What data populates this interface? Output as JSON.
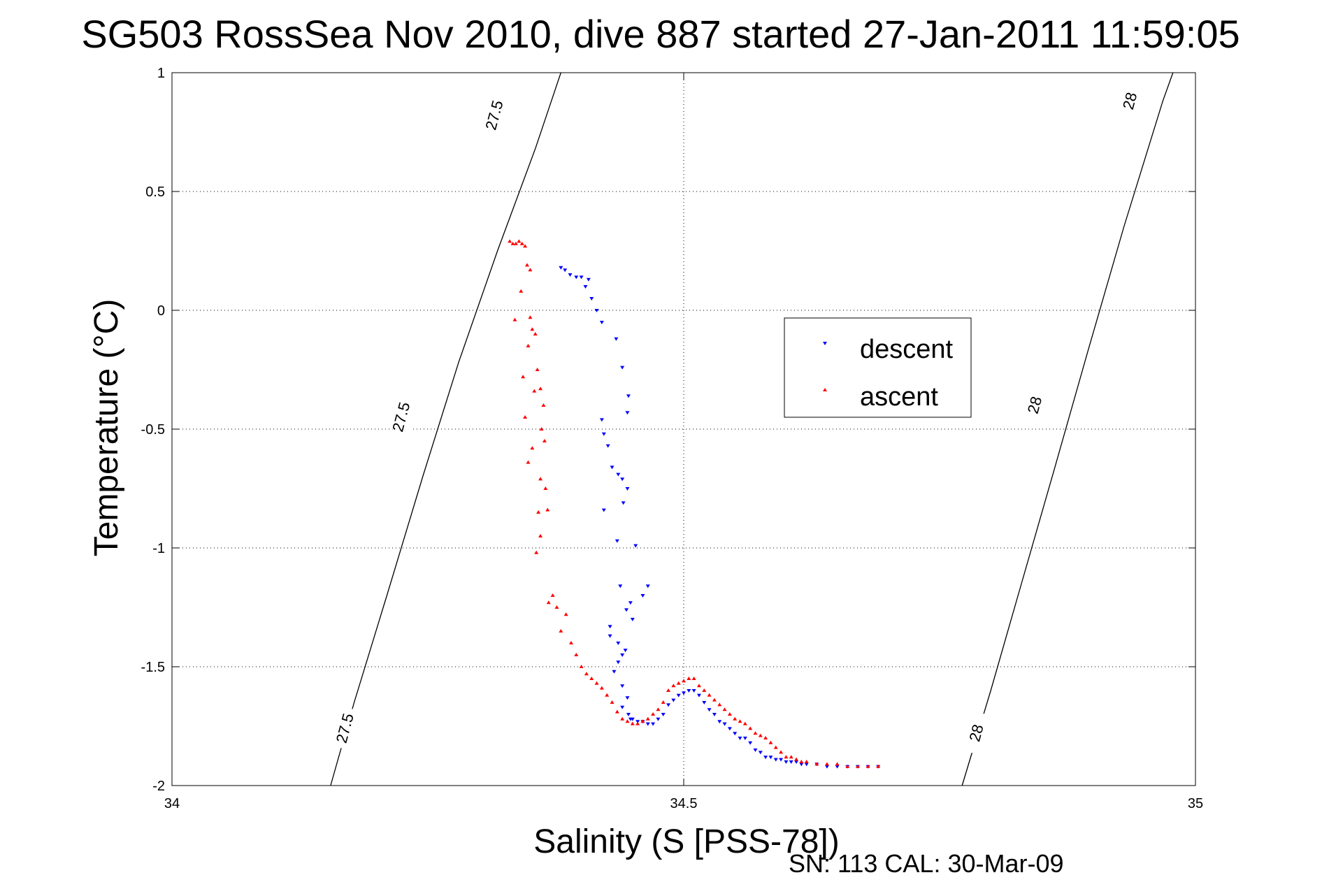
{
  "chart_data": {
    "type": "scatter",
    "title": "SG503 RossSea Nov 2010, dive 887 started 27-Jan-2011 11:59:05",
    "xlabel": "Salinity (S [PSS-78])",
    "ylabel": "Temperature (°C)",
    "xlim": [
      34,
      35
    ],
    "ylim": [
      -2,
      1
    ],
    "xticks": [
      "34",
      "34.5",
      "35"
    ],
    "yticks": [
      "1",
      "0.5",
      "0",
      "-0.5",
      "-1",
      "-1.5",
      "-2"
    ],
    "grid": true,
    "legend_position": "upper-right",
    "footer_text": "SN: 113  CAL: 30-Mar-09",
    "density_contours": [
      {
        "value": "27.5",
        "points": [
          [
            34.155,
            -2.0
          ],
          [
            34.178,
            -1.65
          ],
          [
            34.21,
            -1.2
          ],
          [
            34.245,
            -0.7
          ],
          [
            34.28,
            -0.22
          ],
          [
            34.318,
            0.25
          ],
          [
            34.355,
            0.68
          ],
          [
            34.38,
            1.0
          ]
        ],
        "labels": [
          [
            34.17,
            -1.76
          ],
          [
            34.225,
            -0.45
          ],
          [
            34.316,
            0.82
          ]
        ]
      },
      {
        "value": "28",
        "points": [
          [
            34.772,
            -2.0
          ],
          [
            34.8,
            -1.6
          ],
          [
            34.83,
            -1.15
          ],
          [
            34.862,
            -0.67
          ],
          [
            34.895,
            -0.17
          ],
          [
            34.93,
            0.35
          ],
          [
            34.968,
            0.88
          ],
          [
            34.978,
            1.0
          ]
        ],
        "labels": [
          [
            34.787,
            -1.78
          ],
          [
            34.844,
            -0.4
          ],
          [
            34.937,
            0.88
          ]
        ]
      }
    ],
    "series": [
      {
        "name": "descent",
        "color": "#0000ff",
        "marker": "triangle-down",
        "x": [
          34.38,
          34.384,
          34.389,
          34.395,
          34.4,
          34.404,
          34.407,
          34.41,
          34.415,
          34.42,
          34.434,
          34.44,
          34.446,
          34.445,
          34.42,
          34.422,
          34.426,
          34.43,
          34.436,
          34.44,
          34.445,
          34.422,
          34.441,
          34.435,
          34.453,
          34.438,
          34.444,
          34.428,
          34.448,
          34.428,
          34.436,
          34.443,
          34.465,
          34.46,
          34.45,
          34.44,
          34.436,
          34.432,
          34.44,
          34.445,
          34.44,
          34.446,
          34.448,
          34.45,
          34.455,
          34.46,
          34.465,
          34.47,
          34.475,
          34.48,
          34.485,
          34.49,
          34.495,
          34.5,
          34.505,
          34.51,
          34.515,
          34.52,
          34.525,
          34.53,
          34.535,
          34.54,
          34.545,
          34.55,
          34.555,
          34.56,
          34.565,
          34.57,
          34.575,
          34.58,
          34.585,
          34.59,
          34.595,
          34.6,
          34.605,
          34.61,
          34.615,
          34.62,
          34.63,
          34.64,
          34.65,
          34.66,
          34.67,
          34.68,
          34.69
        ],
        "y": [
          0.18,
          0.17,
          0.15,
          0.14,
          0.14,
          0.1,
          0.13,
          0.05,
          0.0,
          -0.05,
          -0.12,
          -0.24,
          -0.36,
          -0.43,
          -0.46,
          -0.52,
          -0.57,
          -0.66,
          -0.69,
          -0.71,
          -0.75,
          -0.84,
          -0.81,
          -0.97,
          -0.99,
          -1.16,
          -1.26,
          -1.33,
          -1.23,
          -1.37,
          -1.4,
          -1.43,
          -1.16,
          -1.2,
          -1.3,
          -1.45,
          -1.48,
          -1.52,
          -1.58,
          -1.63,
          -1.67,
          -1.7,
          -1.72,
          -1.72,
          -1.73,
          -1.73,
          -1.74,
          -1.74,
          -1.72,
          -1.7,
          -1.66,
          -1.64,
          -1.62,
          -1.61,
          -1.6,
          -1.6,
          -1.62,
          -1.65,
          -1.68,
          -1.7,
          -1.73,
          -1.74,
          -1.76,
          -1.78,
          -1.8,
          -1.8,
          -1.82,
          -1.85,
          -1.86,
          -1.88,
          -1.88,
          -1.89,
          -1.89,
          -1.9,
          -1.9,
          -1.9,
          -1.91,
          -1.91,
          -1.91,
          -1.92,
          -1.92,
          -1.92,
          -1.92,
          -1.92,
          -1.92
        ]
      },
      {
        "name": "ascent",
        "color": "#ff0000",
        "marker": "triangle-up",
        "x": [
          34.33,
          34.333,
          34.336,
          34.339,
          34.342,
          34.345,
          34.347,
          34.35,
          34.341,
          34.335,
          34.35,
          34.348,
          34.352,
          34.355,
          34.343,
          34.357,
          34.36,
          34.363,
          34.354,
          34.345,
          34.361,
          34.364,
          34.352,
          34.348,
          34.36,
          34.365,
          34.367,
          34.358,
          34.36,
          34.356,
          34.372,
          34.368,
          34.376,
          34.385,
          34.38,
          34.39,
          34.395,
          34.4,
          34.405,
          34.41,
          34.415,
          34.42,
          34.425,
          34.43,
          34.435,
          34.44,
          34.445,
          34.45,
          34.455,
          34.46,
          34.465,
          34.47,
          34.475,
          34.48,
          34.485,
          34.49,
          34.495,
          34.5,
          34.505,
          34.51,
          34.515,
          34.52,
          34.525,
          34.53,
          34.535,
          34.54,
          34.545,
          34.55,
          34.555,
          34.56,
          34.565,
          34.57,
          34.575,
          34.58,
          34.585,
          34.59,
          34.595,
          34.6,
          34.605,
          34.61,
          34.615,
          34.62,
          34.63,
          34.64,
          34.65,
          34.66,
          34.67,
          34.68,
          34.69
        ],
        "y": [
          0.29,
          0.28,
          0.28,
          0.29,
          0.28,
          0.27,
          0.19,
          0.17,
          0.08,
          -0.04,
          -0.03,
          -0.15,
          -0.08,
          -0.1,
          -0.28,
          -0.25,
          -0.33,
          -0.4,
          -0.34,
          -0.45,
          -0.5,
          -0.55,
          -0.58,
          -0.64,
          -0.71,
          -0.75,
          -0.84,
          -0.85,
          -0.95,
          -1.02,
          -1.2,
          -1.23,
          -1.25,
          -1.28,
          -1.35,
          -1.4,
          -1.45,
          -1.5,
          -1.53,
          -1.55,
          -1.57,
          -1.59,
          -1.62,
          -1.65,
          -1.69,
          -1.72,
          -1.73,
          -1.74,
          -1.74,
          -1.73,
          -1.72,
          -1.7,
          -1.68,
          -1.65,
          -1.6,
          -1.58,
          -1.57,
          -1.56,
          -1.55,
          -1.55,
          -1.58,
          -1.6,
          -1.62,
          -1.64,
          -1.66,
          -1.68,
          -1.7,
          -1.72,
          -1.73,
          -1.74,
          -1.76,
          -1.78,
          -1.79,
          -1.8,
          -1.82,
          -1.84,
          -1.86,
          -1.88,
          -1.88,
          -1.89,
          -1.9,
          -1.9,
          -1.91,
          -1.91,
          -1.91,
          -1.92,
          -1.92,
          -1.92,
          -1.92
        ]
      }
    ]
  }
}
